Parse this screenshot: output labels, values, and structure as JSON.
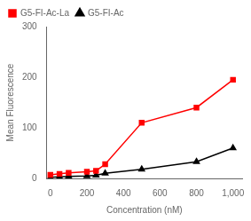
{
  "chart_data": {
    "type": "line",
    "xlabel": "Concentration (nM)",
    "ylabel": "Mean Fluorescence",
    "x": [
      0,
      50,
      100,
      200,
      250,
      300,
      500,
      800,
      1000
    ],
    "series": [
      {
        "name": "G5-FI-Ac-La",
        "color": "#FF0000",
        "marker": "square",
        "line_style": "solid",
        "values": [
          7,
          9,
          11,
          13,
          15,
          28,
          110,
          140,
          195
        ]
      },
      {
        "name": "G5-FI-Ac",
        "color": "#000000",
        "marker": "triangle",
        "line_style": "solid",
        "values": [
          2,
          3,
          4,
          5,
          6,
          10,
          18,
          33,
          60
        ]
      }
    ],
    "xlim": [
      -20,
      1050
    ],
    "ylim": [
      0,
      300
    ],
    "xticks": [
      0,
      200,
      400,
      600,
      800,
      1000
    ],
    "yticks": [
      0,
      100,
      200,
      300
    ],
    "grid": false,
    "legend": "upper left"
  }
}
